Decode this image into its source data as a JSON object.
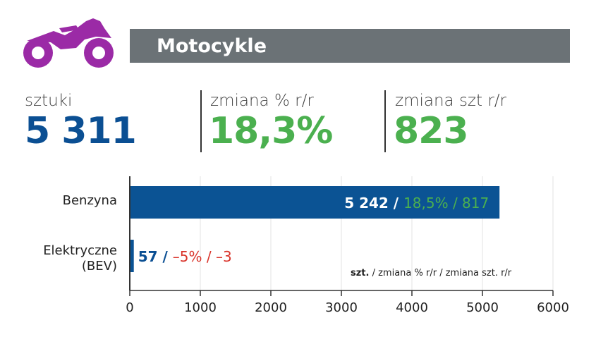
{
  "header": {
    "title": "Motocykle",
    "icon": "motorcycle-icon",
    "icon_color": "#9b2aa6"
  },
  "kpis": [
    {
      "label": "sztuki",
      "value": "5 311",
      "color": "#0b4f93"
    },
    {
      "label": "zmiana % r/r",
      "value": "18,3%",
      "color": "#4bb04f"
    },
    {
      "label": "zmiana szt r/r",
      "value": "823",
      "color": "#4bb04f"
    }
  ],
  "colors": {
    "bar": "#0b5394",
    "positive": "#4bb04f",
    "negative": "#d9342b",
    "axis": "#555555"
  },
  "chart_data": {
    "type": "bar",
    "orientation": "horizontal",
    "categories": [
      "Benzyna",
      "Elektryczne\n(BEV)"
    ],
    "values": [
      5242,
      57
    ],
    "labels": [
      {
        "units": "5 242",
        "sep": " / ",
        "change": "18,5% / 817",
        "change_color": "positive"
      },
      {
        "units": "57",
        "sep": " / ",
        "change": "–5% / –3",
        "change_color": "negative"
      }
    ],
    "xlim": [
      0,
      6000
    ],
    "xticks": [
      0,
      1000,
      2000,
      3000,
      4000,
      5000,
      6000
    ],
    "grid": "vertical",
    "legend_note": {
      "bold": "szt.",
      "rest": " / zmiana % r/r / zmiana szt. r/r"
    }
  }
}
